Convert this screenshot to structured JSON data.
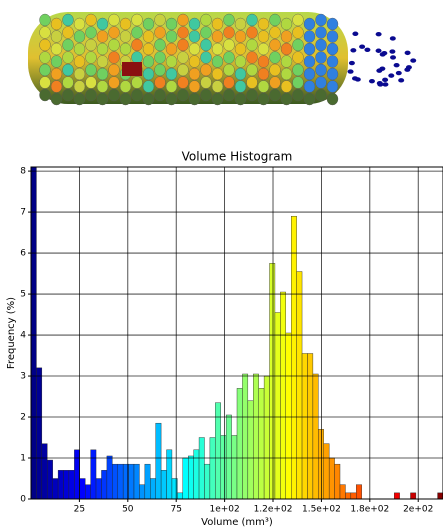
{
  "chart_data": {
    "type": "histogram",
    "title": "Volume Histogram",
    "xlabel": "Volume (mm³)",
    "ylabel": "Frequency (%)",
    "bins": [
      0,
      2.8,
      5.6,
      8.4,
      11.2,
      14,
      16.8,
      19.6,
      22.4,
      25.2,
      28,
      30.8,
      33.6,
      36.4,
      39.2,
      42,
      44.8,
      47.6,
      50.4,
      53.2,
      56,
      58.8,
      61.6,
      64.4,
      67.2,
      70,
      72.8,
      75.6,
      78.4,
      81.2,
      84,
      86.8,
      89.6,
      92.4,
      95.2,
      98,
      100.8,
      103.6,
      106.4,
      109.2,
      112,
      114.8,
      117.6,
      120.4,
      123.2,
      126,
      128.8,
      131.6,
      134.4,
      137.2,
      140,
      142.8,
      145.6,
      148.4,
      151.2,
      154,
      156.8,
      159.6,
      162.4,
      165.2,
      168,
      170.8,
      173.6,
      176.4,
      179.2,
      182,
      184.8,
      187.6,
      190.4,
      193.2,
      196,
      198.8,
      201.6,
      204.4,
      207.2,
      210,
      212.8
    ],
    "values": [
      8.1,
      3.2,
      1.35,
      0.95,
      0.5,
      0.7,
      0.7,
      0.7,
      1.2,
      0.5,
      0.35,
      1.2,
      0.5,
      0.7,
      1.05,
      0.85,
      0.85,
      0.85,
      0.85,
      0.85,
      0.35,
      0.85,
      0.5,
      1.85,
      0.7,
      1.2,
      0.5,
      0.15,
      1.0,
      1.05,
      1.2,
      1.5,
      0.85,
      1.5,
      2.35,
      1.55,
      2.05,
      1.55,
      2.7,
      3.05,
      2.4,
      3.05,
      2.7,
      3.0,
      5.75,
      4.55,
      5.05,
      4.05,
      6.9,
      5.55,
      3.55,
      3.55,
      3.05,
      1.7,
      1.35,
      1.0,
      0.85,
      0.35,
      0.15,
      0.15,
      0.35,
      0,
      0,
      0,
      0,
      0,
      0,
      0.15,
      0,
      0,
      0.15,
      0,
      0,
      0,
      0,
      0.15
    ],
    "colormap": "jet",
    "xlim": [
      0,
      212.8
    ],
    "xticks": [
      25,
      50,
      75,
      {
        "value": 100,
        "label": "1e+02"
      },
      {
        "value": 125,
        "label": "1.2e+02"
      },
      {
        "value": 150,
        "label": "1.5e+02"
      },
      {
        "value": 175,
        "label": "1.8e+02"
      },
      {
        "value": 200,
        "label": "2e+02"
      }
    ],
    "ylim": [
      0,
      8.1
    ],
    "yticks": [
      0,
      1,
      2,
      3,
      4,
      5,
      6,
      7,
      8
    ],
    "grid": true
  }
}
